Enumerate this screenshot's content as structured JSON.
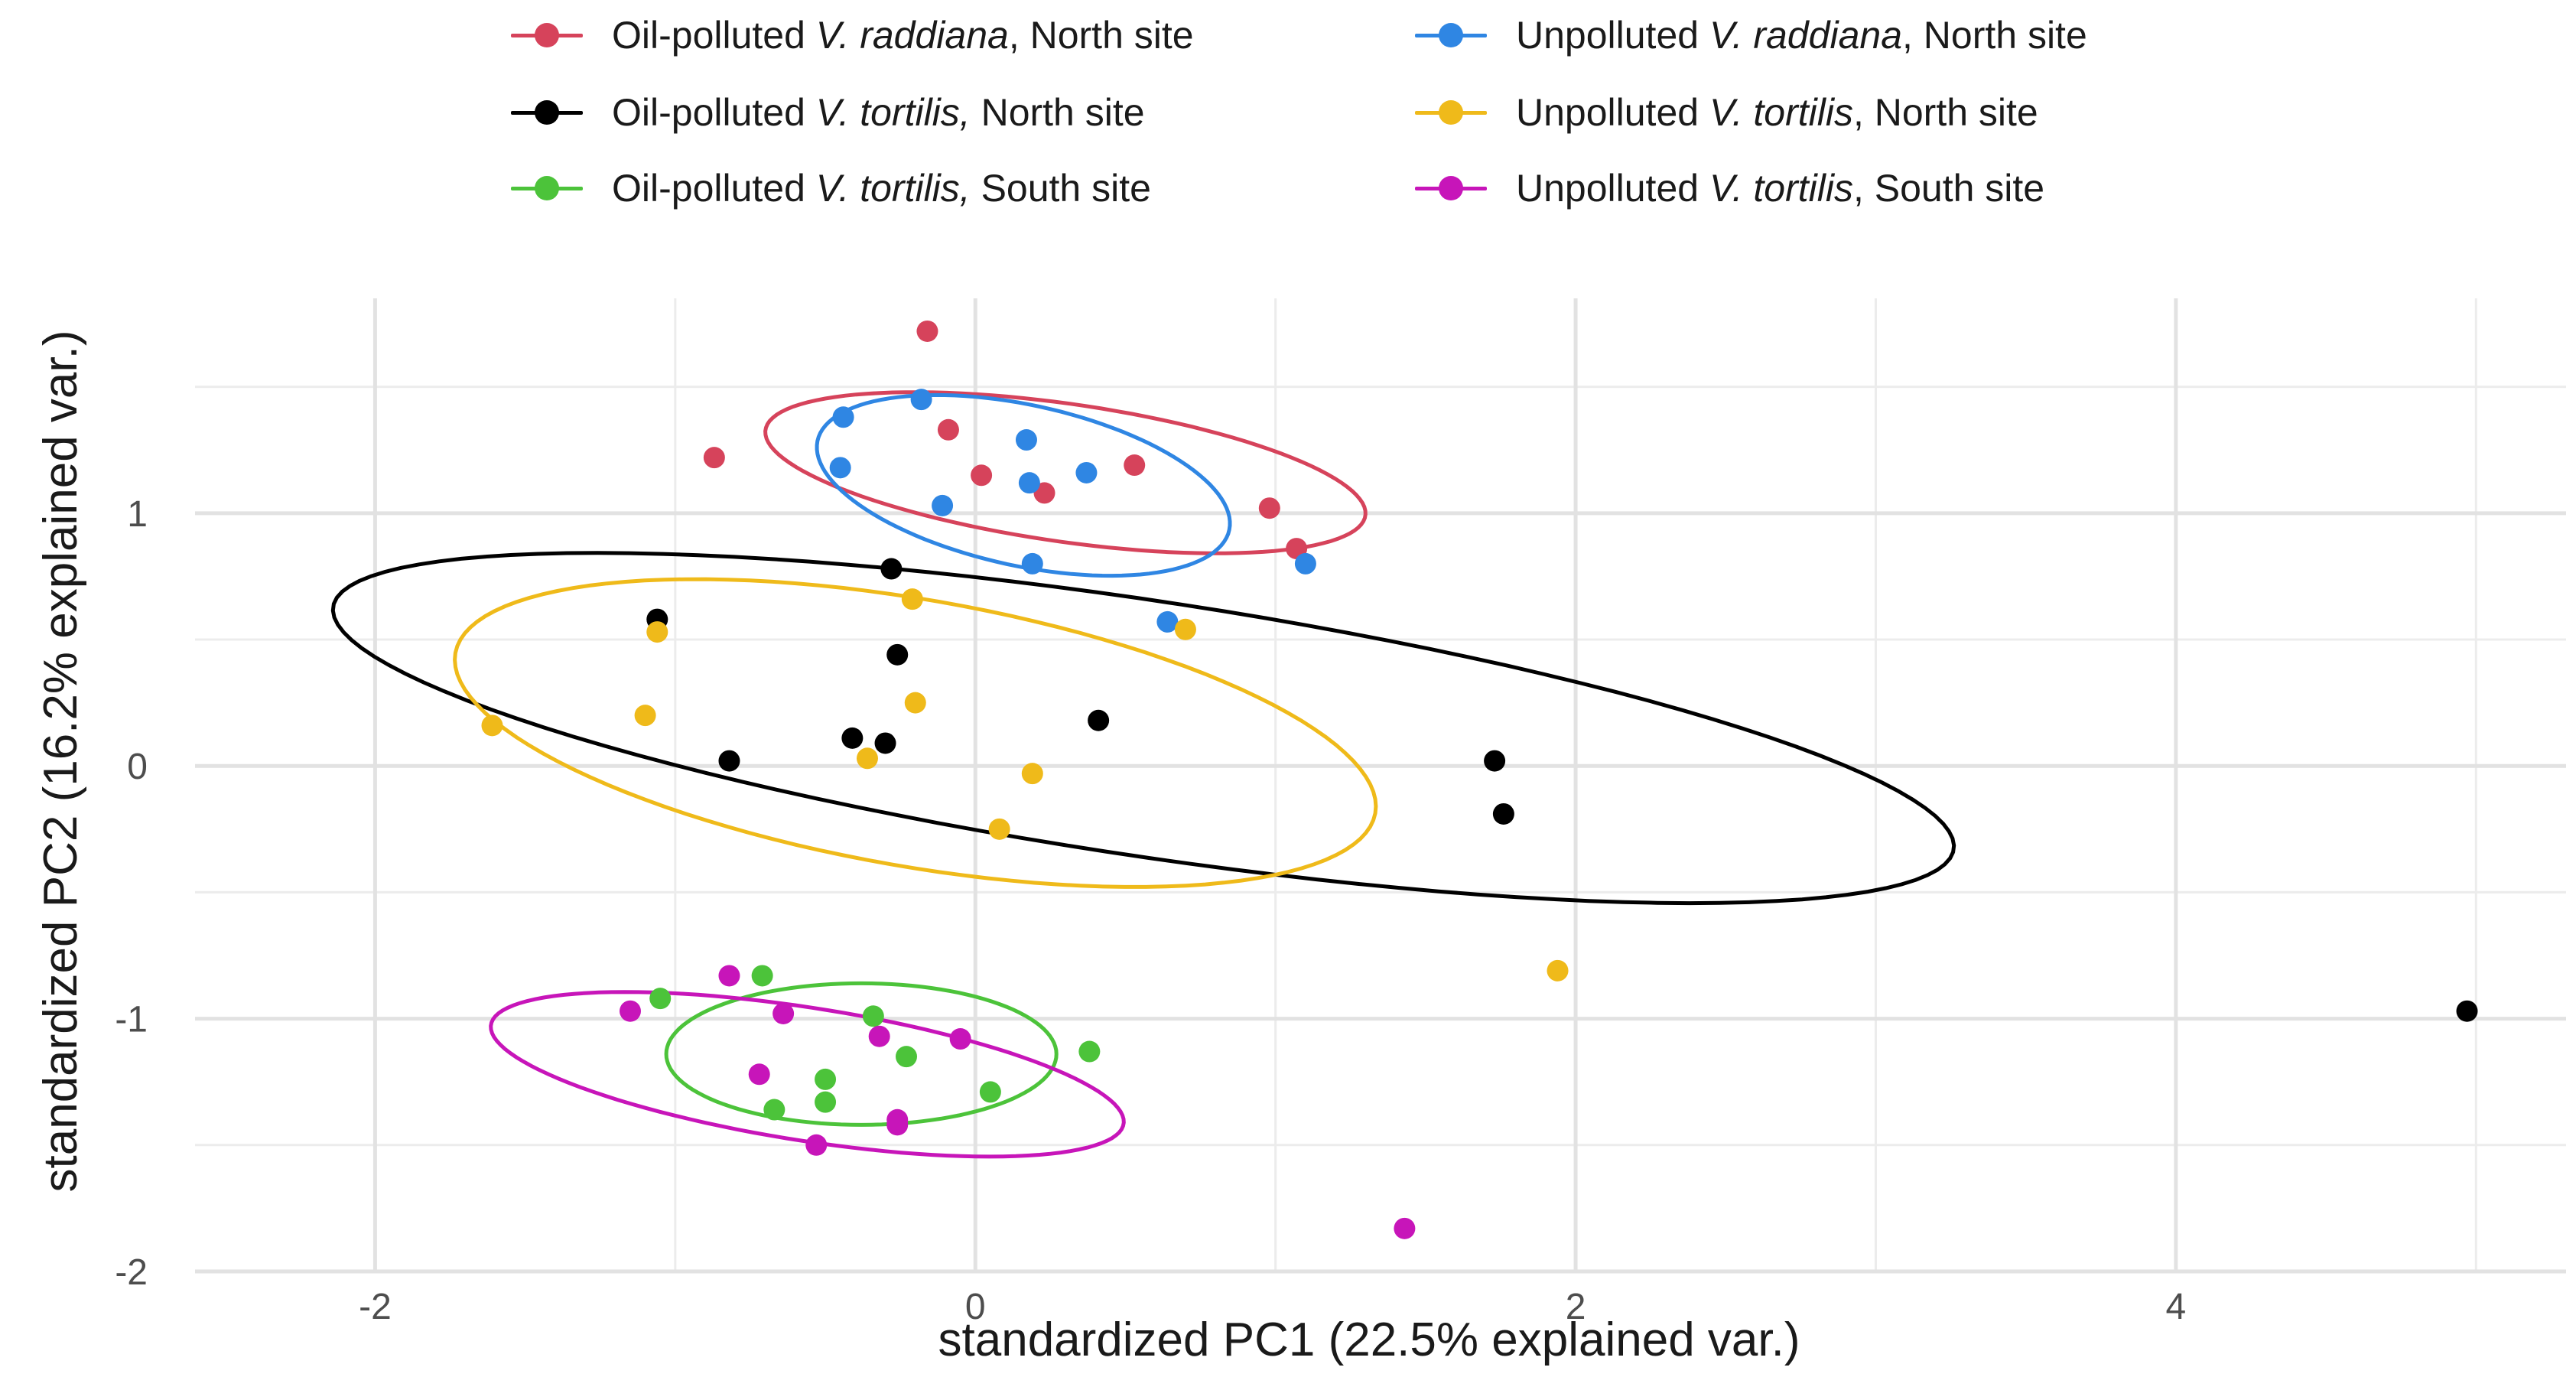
{
  "chart_data": {
    "type": "scatter",
    "xlabel": "standardized PC1 (22.5% explained var.)",
    "ylabel": "standardized PC2 (16.2% explained var.)",
    "xlim": [
      -2.6,
      5.3
    ],
    "ylim": [
      -2.0,
      1.85
    ],
    "x_ticks": [
      -2,
      0,
      2,
      4
    ],
    "y_ticks": [
      -2,
      -1,
      0,
      1
    ],
    "x_tick_labels": [
      "-2",
      "0",
      "2",
      "4"
    ],
    "y_tick_labels": [
      "-2",
      "-1",
      "0",
      "1"
    ],
    "grid": true,
    "legend_position": "top",
    "series": [
      {
        "name": "Oil-polluted V. raddiana, North site",
        "legend_prefix": "Oil-polluted ",
        "legend_species": "V. raddiana",
        "legend_suffix": ", North site",
        "color": "#d6435b",
        "points": [
          [
            -0.16,
            1.72
          ],
          [
            -0.87,
            1.22
          ],
          [
            -0.09,
            1.33
          ],
          [
            0.02,
            1.15
          ],
          [
            0.23,
            1.08
          ],
          [
            0.53,
            1.19
          ],
          [
            0.98,
            1.02
          ],
          [
            1.07,
            0.86
          ]
        ],
        "ellipse": {
          "cx": 0.3,
          "cy": 1.16,
          "rx": 1.02,
          "ry": 0.27,
          "angle_deg": -12
        }
      },
      {
        "name": "Oil-polluted V. tortilis, North site",
        "legend_prefix": "Oil-polluted ",
        "legend_species": "V. tortilis,",
        "legend_suffix": " North site",
        "color": "#000000",
        "points": [
          [
            -1.06,
            0.58
          ],
          [
            -0.28,
            0.78
          ],
          [
            -0.26,
            0.44
          ],
          [
            -0.82,
            0.02
          ],
          [
            -0.41,
            0.11
          ],
          [
            -0.3,
            0.09
          ],
          [
            0.41,
            0.18
          ],
          [
            1.73,
            0.02
          ],
          [
            1.76,
            -0.19
          ],
          [
            4.97,
            -0.97
          ]
        ],
        "ellipse": {
          "cx": 0.56,
          "cy": 0.15,
          "rx": 2.76,
          "ry": 0.5,
          "angle_deg": -12.2
        }
      },
      {
        "name": "Oil-polluted V. tortilis, South site",
        "legend_prefix": "Oil-polluted ",
        "legend_species": "V. tortilis,",
        "legend_suffix": " South site",
        "color": "#4cc33a",
        "points": [
          [
            -1.05,
            -0.92
          ],
          [
            -0.71,
            -0.83
          ],
          [
            -0.34,
            -0.99
          ],
          [
            -0.5,
            -1.24
          ],
          [
            -0.23,
            -1.15
          ],
          [
            -0.5,
            -1.33
          ],
          [
            -0.67,
            -1.36
          ],
          [
            0.05,
            -1.29
          ],
          [
            0.38,
            -1.13
          ]
        ],
        "ellipse": {
          "cx": -0.38,
          "cy": -1.14,
          "rx": 0.65,
          "ry": 0.28,
          "angle_deg": 0
        }
      },
      {
        "name": "Unpolluted V. raddiana, North site",
        "legend_prefix": "Unpolluted ",
        "legend_species": "V. raddiana",
        "legend_suffix": ", North site",
        "color": "#2f86e3",
        "points": [
          [
            -0.44,
            1.38
          ],
          [
            -0.18,
            1.45
          ],
          [
            0.17,
            1.29
          ],
          [
            -0.45,
            1.18
          ],
          [
            0.18,
            1.12
          ],
          [
            0.37,
            1.16
          ],
          [
            -0.11,
            1.03
          ],
          [
            0.19,
            0.8
          ],
          [
            1.1,
            0.8
          ],
          [
            0.64,
            0.57
          ]
        ],
        "ellipse": {
          "cx": 0.16,
          "cy": 1.11,
          "rx": 0.72,
          "ry": 0.31,
          "angle_deg": -20
        }
      },
      {
        "name": "Unpolluted V. tortilis, North site",
        "legend_prefix": "Unpolluted ",
        "legend_species": "V. tortilis",
        "legend_suffix": ", North site",
        "color": "#efba1a",
        "points": [
          [
            -0.21,
            0.66
          ],
          [
            -1.06,
            0.53
          ],
          [
            -1.61,
            0.16
          ],
          [
            -1.1,
            0.2
          ],
          [
            -0.2,
            0.25
          ],
          [
            -0.36,
            0.03
          ],
          [
            0.19,
            -0.03
          ],
          [
            0.08,
            -0.25
          ],
          [
            0.7,
            0.54
          ],
          [
            1.94,
            -0.81
          ]
        ],
        "ellipse": {
          "cx": -0.2,
          "cy": 0.13,
          "rx": 1.58,
          "ry": 0.52,
          "angle_deg": -15
        }
      },
      {
        "name": "Unpolluted V. tortilis, South site",
        "legend_prefix": "Unpolluted ",
        "legend_species": "V. tortilis",
        "legend_suffix": ", South site",
        "color": "#c715b9",
        "points": [
          [
            -1.15,
            -0.97
          ],
          [
            -0.82,
            -0.83
          ],
          [
            -0.64,
            -0.98
          ],
          [
            -0.72,
            -1.22
          ],
          [
            -0.32,
            -1.07
          ],
          [
            -0.05,
            -1.08
          ],
          [
            -0.26,
            -1.4
          ],
          [
            -0.26,
            -1.42
          ],
          [
            -0.53,
            -1.5
          ],
          [
            1.43,
            -1.83
          ]
        ],
        "ellipse": {
          "cx": -0.56,
          "cy": -1.22,
          "rx": 1.08,
          "ry": 0.26,
          "angle_deg": -13
        }
      }
    ]
  }
}
